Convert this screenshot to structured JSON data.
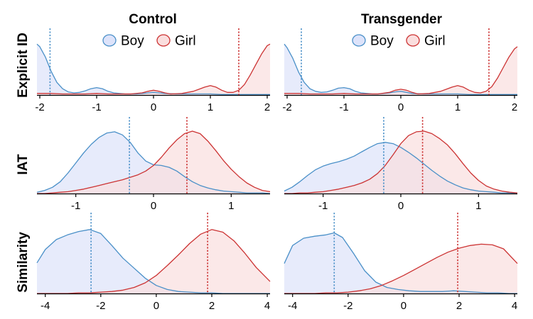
{
  "colors": {
    "boy_line": "#4a90c8",
    "boy_fill": "#dde3fa",
    "girl_line": "#cc3333",
    "girl_fill": "#fadede"
  },
  "columns": [
    "Control",
    "Transgender"
  ],
  "rows": [
    "Explicit ID",
    "IAT",
    "Similarity"
  ],
  "legend": [
    "Boy",
    "Girl"
  ],
  "chart_data": [
    {
      "type": "area",
      "row": "Explicit ID",
      "column": "Control",
      "xlim": [
        -2.05,
        2.05
      ],
      "xticks": [
        -2,
        -1,
        0,
        1,
        2
      ],
      "tick_labels": [
        "-2",
        "-1",
        "0",
        "1",
        "2"
      ],
      "means": {
        "Boy": -1.82,
        "Girl": 1.5
      },
      "series": [
        {
          "name": "Boy",
          "x": [
            -2.05,
            -2.0,
            -1.9,
            -1.8,
            -1.7,
            -1.6,
            -1.5,
            -1.4,
            -1.3,
            -1.2,
            -1.1,
            -1.0,
            -0.9,
            -0.8,
            -0.7,
            -0.6,
            -0.5,
            -0.4,
            -0.3,
            -0.2,
            -0.1,
            0.0,
            0.1,
            0.2,
            0.4,
            0.6,
            0.8,
            1.0,
            1.2,
            1.4,
            1.6,
            1.8,
            2.05
          ],
          "y": [
            0.97,
            0.92,
            0.72,
            0.45,
            0.24,
            0.12,
            0.06,
            0.04,
            0.05,
            0.08,
            0.12,
            0.14,
            0.12,
            0.07,
            0.04,
            0.03,
            0.02,
            0.02,
            0.02,
            0.03,
            0.04,
            0.05,
            0.04,
            0.03,
            0.02,
            0.02,
            0.02,
            0.02,
            0.01,
            0.01,
            0.01,
            0.01,
            0.01
          ]
        },
        {
          "name": "Girl",
          "x": [
            -2.05,
            -1.8,
            -1.6,
            -1.2,
            -1.0,
            -0.8,
            -0.4,
            -0.2,
            -0.1,
            0.0,
            0.1,
            0.2,
            0.3,
            0.5,
            0.7,
            0.8,
            0.9,
            1.0,
            1.1,
            1.2,
            1.3,
            1.4,
            1.5,
            1.6,
            1.7,
            1.8,
            1.9,
            2.0,
            2.05
          ],
          "y": [
            0.03,
            0.03,
            0.02,
            0.02,
            0.03,
            0.02,
            0.02,
            0.04,
            0.07,
            0.09,
            0.07,
            0.04,
            0.02,
            0.03,
            0.07,
            0.11,
            0.15,
            0.18,
            0.15,
            0.09,
            0.05,
            0.05,
            0.09,
            0.2,
            0.38,
            0.58,
            0.78,
            0.94,
            0.97
          ]
        }
      ]
    },
    {
      "type": "area",
      "row": "Explicit ID",
      "column": "Transgender",
      "xlim": [
        -2.05,
        2.05
      ],
      "xticks": [
        -2,
        -1,
        0,
        1,
        2
      ],
      "tick_labels": [
        "-2",
        "-1",
        "0",
        "1",
        "2"
      ],
      "means": {
        "Boy": -1.75,
        "Girl": 1.55
      },
      "series": [
        {
          "name": "Boy",
          "x": [
            -2.05,
            -2.0,
            -1.9,
            -1.8,
            -1.7,
            -1.6,
            -1.5,
            -1.4,
            -1.3,
            -1.2,
            -1.1,
            -1.0,
            -0.9,
            -0.8,
            -0.7,
            -0.6,
            -0.5,
            -0.4,
            -0.3,
            -0.2,
            -0.1,
            0.0,
            0.1,
            0.2,
            0.4,
            0.6,
            0.8,
            1.0,
            1.2,
            1.4,
            1.6,
            1.8,
            2.05
          ],
          "y": [
            0.97,
            0.9,
            0.7,
            0.44,
            0.24,
            0.12,
            0.07,
            0.05,
            0.06,
            0.09,
            0.13,
            0.14,
            0.12,
            0.07,
            0.04,
            0.03,
            0.02,
            0.02,
            0.03,
            0.04,
            0.06,
            0.07,
            0.05,
            0.03,
            0.02,
            0.02,
            0.02,
            0.02,
            0.01,
            0.01,
            0.01,
            0.01,
            0.01
          ]
        },
        {
          "name": "Girl",
          "x": [
            -2.05,
            -1.8,
            -1.6,
            -1.2,
            -1.0,
            -0.8,
            -0.4,
            -0.2,
            -0.1,
            0.0,
            0.1,
            0.2,
            0.3,
            0.5,
            0.7,
            0.8,
            0.9,
            1.0,
            1.1,
            1.2,
            1.3,
            1.4,
            1.5,
            1.6,
            1.7,
            1.8,
            1.9,
            2.0,
            2.05
          ],
          "y": [
            0.03,
            0.03,
            0.02,
            0.02,
            0.03,
            0.02,
            0.02,
            0.05,
            0.09,
            0.11,
            0.09,
            0.05,
            0.02,
            0.03,
            0.07,
            0.11,
            0.15,
            0.18,
            0.15,
            0.09,
            0.05,
            0.04,
            0.07,
            0.16,
            0.32,
            0.52,
            0.72,
            0.88,
            0.92
          ]
        }
      ]
    },
    {
      "type": "area",
      "row": "IAT",
      "column": "Control",
      "xlim": [
        -1.5,
        1.5
      ],
      "xticks": [
        -1,
        0,
        1
      ],
      "tick_labels": [
        "-1",
        "0",
        "1"
      ],
      "means": {
        "Boy": -0.31,
        "Girl": 0.43
      },
      "series": [
        {
          "name": "Boy",
          "x": [
            -1.5,
            -1.4,
            -1.3,
            -1.2,
            -1.1,
            -1.0,
            -0.9,
            -0.8,
            -0.7,
            -0.6,
            -0.5,
            -0.4,
            -0.3,
            -0.2,
            -0.1,
            0.0,
            0.1,
            0.2,
            0.3,
            0.4,
            0.5,
            0.6,
            0.7,
            0.8,
            0.9,
            1.0,
            1.1,
            1.2,
            1.3,
            1.4,
            1.5
          ],
          "y": [
            0.02,
            0.05,
            0.1,
            0.19,
            0.33,
            0.49,
            0.65,
            0.79,
            0.9,
            0.97,
            0.99,
            0.94,
            0.82,
            0.65,
            0.52,
            0.46,
            0.45,
            0.42,
            0.36,
            0.27,
            0.19,
            0.13,
            0.09,
            0.06,
            0.04,
            0.03,
            0.02,
            0.01,
            0.01,
            0.01,
            0.0
          ]
        },
        {
          "name": "Girl",
          "x": [
            -1.5,
            -1.4,
            -1.3,
            -1.2,
            -1.1,
            -1.0,
            -0.9,
            -0.8,
            -0.7,
            -0.6,
            -0.5,
            -0.4,
            -0.3,
            -0.2,
            -0.1,
            0.0,
            0.1,
            0.2,
            0.3,
            0.4,
            0.5,
            0.6,
            0.7,
            0.8,
            0.9,
            1.0,
            1.1,
            1.2,
            1.3,
            1.4,
            1.5
          ],
          "y": [
            0.0,
            0.0,
            0.01,
            0.02,
            0.03,
            0.05,
            0.07,
            0.1,
            0.13,
            0.16,
            0.19,
            0.22,
            0.26,
            0.3,
            0.36,
            0.45,
            0.58,
            0.73,
            0.86,
            0.96,
            1.0,
            0.96,
            0.84,
            0.69,
            0.53,
            0.39,
            0.27,
            0.17,
            0.1,
            0.05,
            0.03
          ]
        }
      ]
    },
    {
      "type": "area",
      "row": "IAT",
      "column": "Transgender",
      "xlim": [
        -1.5,
        1.5
      ],
      "xticks": [
        -1,
        0,
        1
      ],
      "tick_labels": [
        "-1",
        "0",
        "1"
      ],
      "means": {
        "Boy": -0.22,
        "Girl": 0.28
      },
      "series": [
        {
          "name": "Boy",
          "x": [
            -1.5,
            -1.4,
            -1.3,
            -1.2,
            -1.1,
            -1.0,
            -0.9,
            -0.8,
            -0.7,
            -0.6,
            -0.5,
            -0.4,
            -0.3,
            -0.2,
            -0.1,
            0.0,
            0.1,
            0.2,
            0.3,
            0.4,
            0.5,
            0.6,
            0.7,
            0.8,
            0.9,
            1.0,
            1.1,
            1.2,
            1.3,
            1.4,
            1.5
          ],
          "y": [
            0.04,
            0.1,
            0.19,
            0.29,
            0.38,
            0.44,
            0.48,
            0.51,
            0.55,
            0.6,
            0.67,
            0.74,
            0.8,
            0.82,
            0.8,
            0.74,
            0.66,
            0.57,
            0.47,
            0.37,
            0.28,
            0.2,
            0.14,
            0.09,
            0.06,
            0.04,
            0.03,
            0.02,
            0.01,
            0.01,
            0.0
          ]
        },
        {
          "name": "Girl",
          "x": [
            -1.5,
            -1.4,
            -1.3,
            -1.2,
            -1.1,
            -1.0,
            -0.9,
            -0.8,
            -0.7,
            -0.6,
            -0.5,
            -0.4,
            -0.3,
            -0.2,
            -0.1,
            0.0,
            0.1,
            0.2,
            0.3,
            0.4,
            0.5,
            0.6,
            0.7,
            0.8,
            0.9,
            1.0,
            1.1,
            1.2,
            1.3,
            1.4,
            1.5
          ],
          "y": [
            0.0,
            0.0,
            0.01,
            0.01,
            0.02,
            0.03,
            0.05,
            0.07,
            0.1,
            0.13,
            0.17,
            0.23,
            0.32,
            0.45,
            0.62,
            0.8,
            0.93,
            0.99,
            1.0,
            0.96,
            0.88,
            0.78,
            0.64,
            0.48,
            0.33,
            0.21,
            0.12,
            0.07,
            0.04,
            0.02,
            0.01
          ]
        }
      ]
    },
    {
      "type": "area",
      "row": "Similarity",
      "column": "Control",
      "xlim": [
        -4.3,
        4.1
      ],
      "xticks": [
        -4,
        -2,
        0,
        2,
        4
      ],
      "tick_labels": [
        "-4",
        "-2",
        "0",
        "2",
        "4"
      ],
      "means": {
        "Boy": -2.35,
        "Girl": 1.85
      },
      "series": [
        {
          "name": "Boy",
          "x": [
            -4.3,
            -4.0,
            -3.6,
            -3.2,
            -2.8,
            -2.4,
            -2.0,
            -1.6,
            -1.2,
            -0.8,
            -0.4,
            0.0,
            0.4,
            0.8,
            1.2,
            1.6,
            2.0,
            2.4,
            2.8,
            3.2,
            3.6,
            4.1
          ],
          "y": [
            0.46,
            0.66,
            0.81,
            0.88,
            0.93,
            0.96,
            0.9,
            0.72,
            0.53,
            0.38,
            0.23,
            0.12,
            0.06,
            0.03,
            0.02,
            0.01,
            0.01,
            0.0,
            0.0,
            0.0,
            0.0,
            0.0
          ]
        },
        {
          "name": "Girl",
          "x": [
            -4.3,
            -4.0,
            -3.6,
            -3.2,
            -2.8,
            -2.4,
            -2.0,
            -1.6,
            -1.2,
            -0.8,
            -0.4,
            0.0,
            0.4,
            0.8,
            1.2,
            1.6,
            2.0,
            2.4,
            2.8,
            3.2,
            3.6,
            4.1
          ],
          "y": [
            0.0,
            0.0,
            0.0,
            0.0,
            0.01,
            0.01,
            0.02,
            0.03,
            0.05,
            0.09,
            0.16,
            0.27,
            0.42,
            0.58,
            0.75,
            0.89,
            0.96,
            0.92,
            0.79,
            0.6,
            0.39,
            0.18
          ]
        }
      ]
    },
    {
      "type": "area",
      "row": "Similarity",
      "column": "Transgender",
      "xlim": [
        -4.3,
        4.1
      ],
      "xticks": [
        -4,
        -2,
        0,
        2,
        4
      ],
      "tick_labels": [
        "-4",
        "-2",
        "0",
        "2",
        "4"
      ],
      "means": {
        "Boy": -2.5,
        "Girl": 1.95
      },
      "series": [
        {
          "name": "Boy",
          "x": [
            -4.3,
            -4.0,
            -3.6,
            -3.2,
            -2.8,
            -2.5,
            -2.2,
            -1.8,
            -1.4,
            -1.0,
            -0.6,
            -0.2,
            0.2,
            0.6,
            1.0,
            1.4,
            1.8,
            2.2,
            2.6,
            3.0,
            3.4,
            3.8,
            4.1
          ],
          "y": [
            0.45,
            0.72,
            0.83,
            0.86,
            0.88,
            0.91,
            0.84,
            0.6,
            0.34,
            0.17,
            0.09,
            0.06,
            0.04,
            0.03,
            0.03,
            0.03,
            0.04,
            0.03,
            0.02,
            0.01,
            0.01,
            0.0,
            0.0
          ]
        },
        {
          "name": "Girl",
          "x": [
            -4.3,
            -4.0,
            -3.6,
            -3.2,
            -2.8,
            -2.4,
            -2.0,
            -1.6,
            -1.2,
            -0.8,
            -0.4,
            0.0,
            0.4,
            0.8,
            1.2,
            1.6,
            2.0,
            2.4,
            2.8,
            3.2,
            3.6,
            4.1
          ],
          "y": [
            0.0,
            0.0,
            0.0,
            0.0,
            0.01,
            0.01,
            0.02,
            0.04,
            0.07,
            0.12,
            0.19,
            0.27,
            0.36,
            0.45,
            0.54,
            0.62,
            0.68,
            0.72,
            0.74,
            0.73,
            0.67,
            0.45
          ]
        }
      ]
    }
  ]
}
